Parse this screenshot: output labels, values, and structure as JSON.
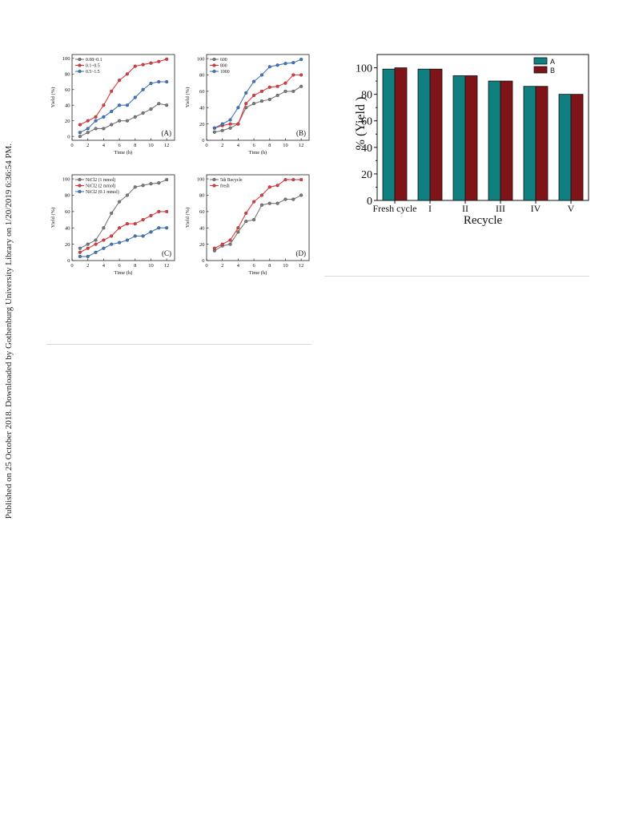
{
  "side_note": "Published on 25 October 2018. Downloaded by Gothenburg University Library on 1/20/2019 6:36:54 PM.",
  "chart_data": [
    {
      "type": "line",
      "panel_label": "(A)",
      "xlabel": "Time (h)",
      "ylabel": "Yield (%)",
      "xlim": [
        0,
        13
      ],
      "ylim": [
        -5,
        105
      ],
      "xticks": [
        0,
        2,
        4,
        6,
        8,
        10,
        12
      ],
      "yticks": [
        0,
        20,
        40,
        60,
        80,
        100
      ],
      "legend_position": "top-left",
      "x": [
        1,
        2,
        3,
        4,
        5,
        6,
        7,
        8,
        9,
        10,
        11,
        12
      ],
      "series": [
        {
          "name": "0.08~0.1",
          "color": "#7a7a7a",
          "values": [
            0,
            5,
            10,
            10,
            15,
            20,
            20,
            25,
            30,
            35,
            42,
            40
          ]
        },
        {
          "name": "0.1~0.5",
          "color": "#e8383d",
          "values": [
            15,
            20,
            25,
            40,
            58,
            72,
            80,
            90,
            92,
            94,
            96,
            99
          ]
        },
        {
          "name": "0.5~1.5",
          "color": "#3d78c7",
          "values": [
            5,
            10,
            20,
            25,
            32,
            40,
            40,
            50,
            60,
            68,
            70,
            70
          ]
        }
      ]
    },
    {
      "type": "line",
      "panel_label": "(B)",
      "xlabel": "Time (h)",
      "ylabel": "Yield (%)",
      "xlim": [
        0,
        13
      ],
      "ylim": [
        0,
        105
      ],
      "xticks": [
        0,
        2,
        4,
        6,
        8,
        10,
        12
      ],
      "yticks": [
        0,
        20,
        40,
        60,
        80,
        100
      ],
      "legend_position": "top-left",
      "x": [
        1,
        2,
        3,
        4,
        5,
        6,
        7,
        8,
        9,
        10,
        11,
        12
      ],
      "series": [
        {
          "name": "600",
          "color": "#7a7a7a",
          "values": [
            10,
            12,
            15,
            20,
            40,
            45,
            48,
            50,
            55,
            60,
            60,
            66
          ]
        },
        {
          "name": "800",
          "color": "#e8383d",
          "values": [
            15,
            18,
            20,
            20,
            45,
            55,
            60,
            65,
            66,
            70,
            80,
            80
          ]
        },
        {
          "name": "1000",
          "color": "#3d78c7",
          "values": [
            15,
            20,
            25,
            40,
            58,
            72,
            80,
            90,
            92,
            94,
            95,
            99
          ]
        }
      ]
    },
    {
      "type": "line",
      "panel_label": "(C)",
      "xlabel": "Time (h)",
      "ylabel": "Yield (%)",
      "xlim": [
        0,
        13
      ],
      "ylim": [
        0,
        105
      ],
      "xticks": [
        0,
        2,
        4,
        6,
        8,
        10,
        12
      ],
      "yticks": [
        0,
        20,
        40,
        60,
        80,
        100
      ],
      "legend_position": "top-left",
      "x": [
        1,
        2,
        3,
        4,
        5,
        6,
        7,
        8,
        9,
        10,
        11,
        12
      ],
      "series": [
        {
          "name": "NiCl2 (1 mmol)",
          "color": "#7a7a7a",
          "values": [
            15,
            20,
            25,
            40,
            58,
            72,
            80,
            90,
            92,
            94,
            95,
            99
          ]
        },
        {
          "name": "NiCl2 (2 mmol)",
          "color": "#e8383d",
          "values": [
            10,
            15,
            20,
            25,
            30,
            40,
            45,
            45,
            50,
            55,
            60,
            60
          ]
        },
        {
          "name": "NiCl2 (0.1 mmol)",
          "color": "#3d78c7",
          "values": [
            5,
            5,
            10,
            15,
            20,
            22,
            25,
            30,
            30,
            35,
            40,
            40
          ]
        }
      ]
    },
    {
      "type": "line",
      "panel_label": "(D)",
      "xlabel": "Time (h)",
      "ylabel": "Yield (%)",
      "xlim": [
        0,
        13
      ],
      "ylim": [
        0,
        105
      ],
      "xticks": [
        0,
        2,
        4,
        6,
        8,
        10,
        12
      ],
      "yticks": [
        0,
        20,
        40,
        60,
        80,
        100
      ],
      "legend_position": "top-left",
      "x": [
        1,
        2,
        3,
        4,
        5,
        6,
        7,
        8,
        9,
        10,
        11,
        12
      ],
      "series": [
        {
          "name": "5th Recycle",
          "color": "#7a7a7a",
          "values": [
            12,
            18,
            20,
            35,
            48,
            50,
            68,
            70,
            70,
            75,
            75,
            80
          ]
        },
        {
          "name": "fresh",
          "color": "#e8383d",
          "values": [
            15,
            20,
            25,
            40,
            58,
            72,
            80,
            90,
            92,
            99,
            99,
            99
          ]
        }
      ]
    },
    {
      "type": "bar",
      "title": "",
      "xlabel": "Recycle",
      "ylabel": "% (Yield )",
      "ylim": [
        0,
        110
      ],
      "yticks": [
        0,
        20,
        40,
        60,
        80,
        100
      ],
      "categories": [
        "Fresh cycle",
        "I",
        "II",
        "III",
        "IV",
        "V"
      ],
      "legend_position": "top-right",
      "series": [
        {
          "name": "A",
          "color": "#0f7f80",
          "values": [
            99,
            99,
            94,
            90,
            86,
            80
          ]
        },
        {
          "name": "B",
          "color": "#7e1418",
          "values": [
            100,
            99,
            94,
            90,
            86,
            80
          ]
        }
      ]
    }
  ]
}
